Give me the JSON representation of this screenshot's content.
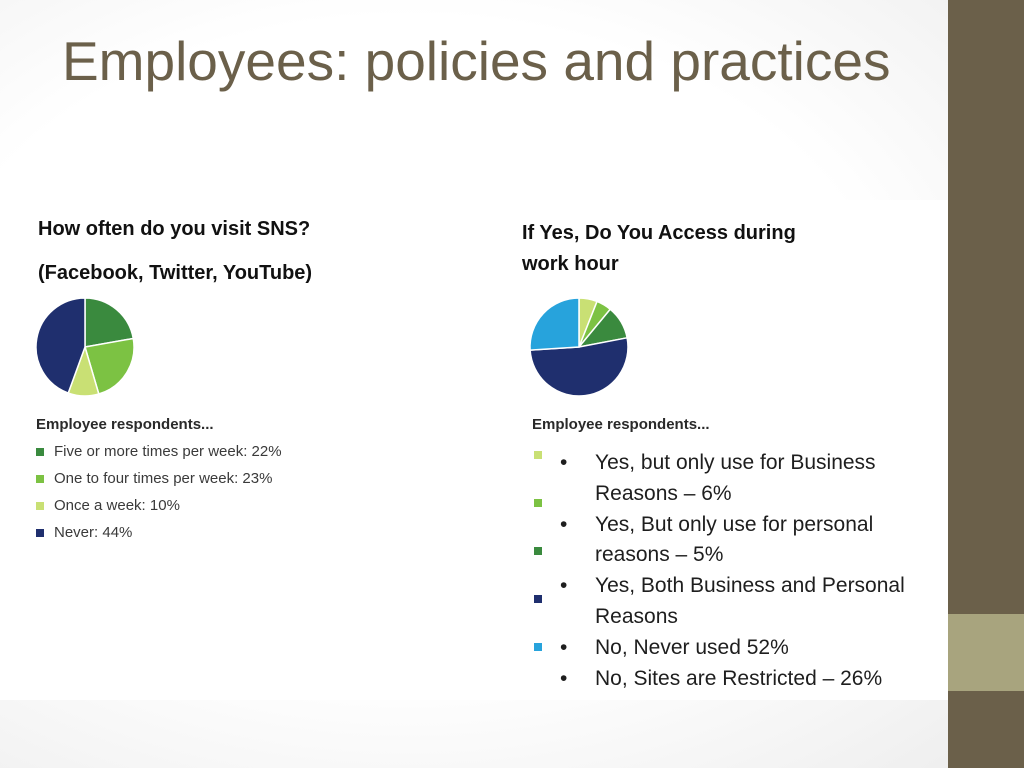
{
  "slide": {
    "title": "Employees: policies and practices"
  },
  "left": {
    "question_line1": "How often do you visit SNS?",
    "question_line2": "(Facebook, Twitter, YouTube)",
    "legend_title": "Employee respondents...",
    "legend": [
      {
        "label": "Five or more times per week: 22%",
        "color": "#3a8a3e"
      },
      {
        "label": "One to four times per week: 23%",
        "color": "#7cc243"
      },
      {
        "label": "Once a week: 10%",
        "color": "#c9e074"
      },
      {
        "label": "Never: 44%",
        "color": "#1f2f6e"
      }
    ]
  },
  "right": {
    "question": "If Yes, Do You Access during work hour",
    "legend_title": "Employee respondents...",
    "legend_colors": [
      "#c9e074",
      "#7cc243",
      "#3a8a3e",
      "#1f2f6e",
      "#27a3dc"
    ],
    "bullets": [
      "Yes, but only use for Business Reasons – 6%",
      "Yes, But only use for personal reasons – 5%",
      "Yes, Both Business and Personal Reasons",
      "No, Never used 52%",
      "No, Sites are Restricted – 26%"
    ],
    "bullet_glyph": "•"
  },
  "chart_data": [
    {
      "type": "pie",
      "title": "How often do you visit SNS?",
      "categories": [
        "Five or more times per week",
        "One to four times per week",
        "Once a week",
        "Never"
      ],
      "values": [
        22,
        23,
        10,
        44
      ],
      "colors": [
        "#3a8a3e",
        "#7cc243",
        "#c9e074",
        "#1f2f6e"
      ],
      "start_angle_deg": 0
    },
    {
      "type": "pie",
      "title": "If Yes, Do You Access during work hour",
      "categories": [
        "Yes, but only use for Business Reasons",
        "Yes, But only use for personal reasons",
        "Yes, Both Business and Personal Reasons",
        "No, Never used",
        "No, Sites are Restricted"
      ],
      "values": [
        6,
        5,
        11,
        52,
        26
      ],
      "colors": [
        "#c9e074",
        "#7cc243",
        "#3a8a3e",
        "#1f2f6e",
        "#27a3dc"
      ],
      "start_angle_deg": 0
    }
  ]
}
